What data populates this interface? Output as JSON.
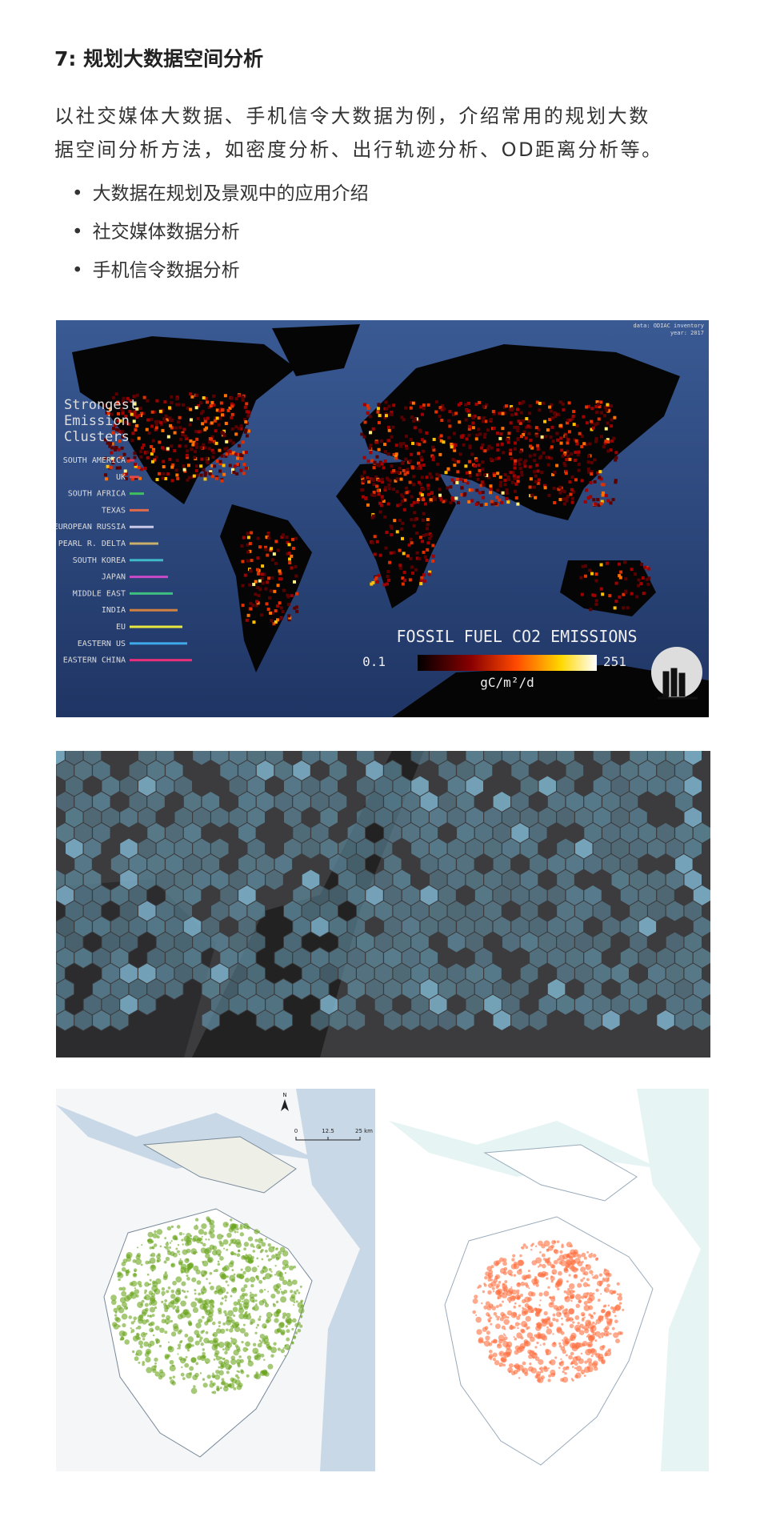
{
  "section": {
    "title": "7: 规划大数据空间分析",
    "intro_lines": [
      "以社交媒体大数据、手机信令大数据为例，介绍常用的规划大数",
      "据空间分析方法，如密度分析、出行轨迹分析、OD距离分析等。"
    ],
    "bullets": [
      "大数据在规划及景观中的应用介绍",
      "社交媒体数据分析",
      "手机信令数据分析"
    ]
  },
  "emissions_map": {
    "attribution": [
      "data: ODIAC inventory",
      "year: 2017"
    ],
    "heading": [
      "Strongest",
      "Emission",
      "Clusters"
    ],
    "clusters": [
      {
        "name": "SOUTH AMERICA",
        "color": "#e0345a"
      },
      {
        "name": "UK",
        "color": "#e04a4a"
      },
      {
        "name": "SOUTH AFRICA",
        "color": "#3fbf5f"
      },
      {
        "name": "TEXAS",
        "color": "#e06a4a"
      },
      {
        "name": "EUROPEAN RUSSIA",
        "color": "#c8c8e8"
      },
      {
        "name": "PEARL R. DELTA",
        "color": "#c8b06a"
      },
      {
        "name": "SOUTH KOREA",
        "color": "#3fb8c8"
      },
      {
        "name": "JAPAN",
        "color": "#c84ac8"
      },
      {
        "name": "MIDDLE EAST",
        "color": "#3fbf7f"
      },
      {
        "name": "INDIA",
        "color": "#d08040"
      },
      {
        "name": "EU",
        "color": "#e8e840"
      },
      {
        "name": "EASTERN US",
        "color": "#3fa8e8"
      },
      {
        "name": "EASTERN CHINA",
        "color": "#e8307a"
      }
    ],
    "legend_title": "FOSSIL FUEL CO2 EMISSIONS",
    "legend_min": "0.1",
    "legend_max": "251",
    "legend_unit": "gC/m²/d"
  },
  "shanghai_map": {
    "north": "N",
    "scale_labels": [
      "0",
      "12.5",
      "25 km"
    ]
  }
}
